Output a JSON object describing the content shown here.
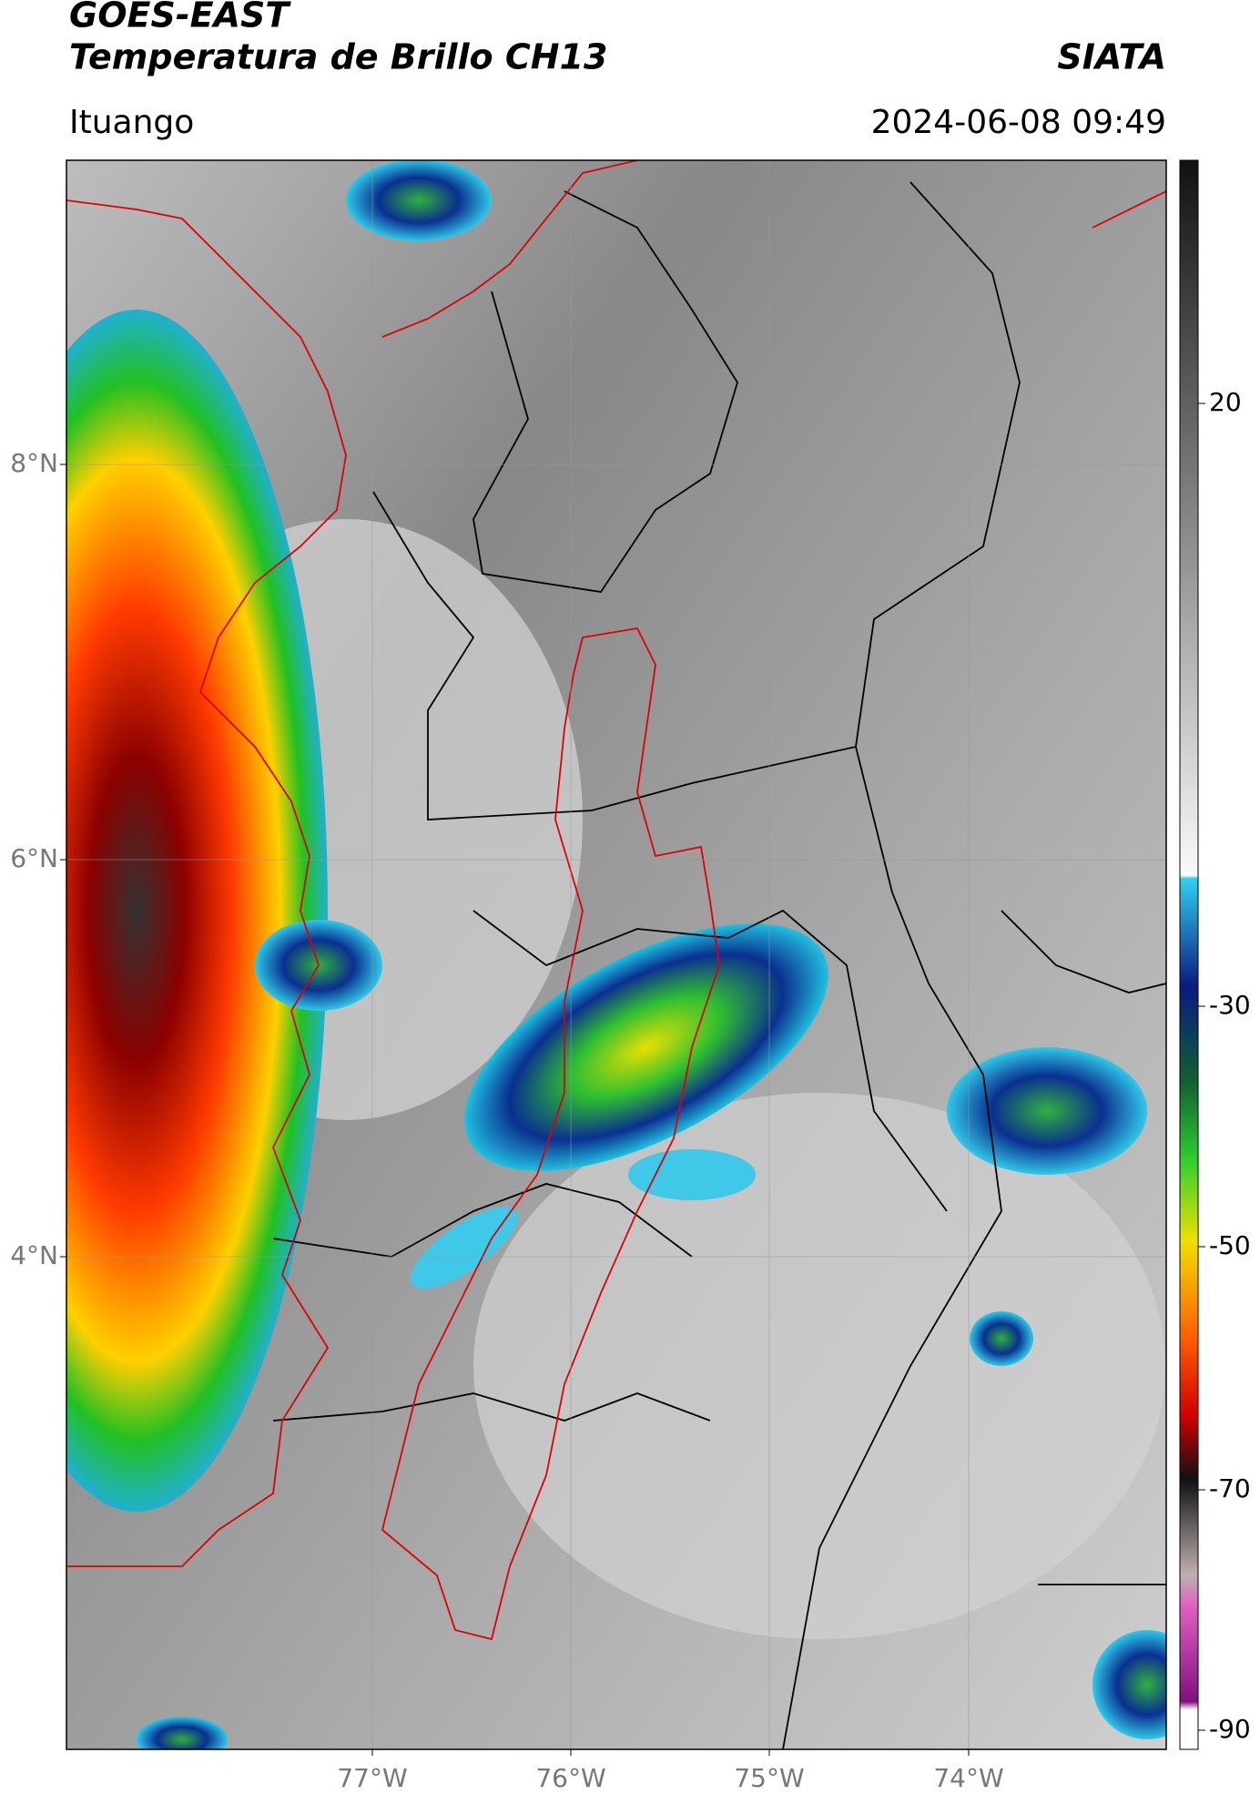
{
  "header": {
    "title": "GOES-EAST",
    "subtitle": "Temperatura de Brillo CH13",
    "brand": "SIATA",
    "location": "Ituango",
    "datetime": "2024-06-08 09:49"
  },
  "map": {
    "lat_labels": [
      "8°N",
      "6°N",
      "4°N"
    ],
    "lon_labels": [
      "77°W",
      "76°W",
      "75°W",
      "74°W"
    ]
  },
  "colorbar": {
    "ticks": [
      "20",
      "-30",
      "-50",
      "-70",
      "-90"
    ]
  }
}
